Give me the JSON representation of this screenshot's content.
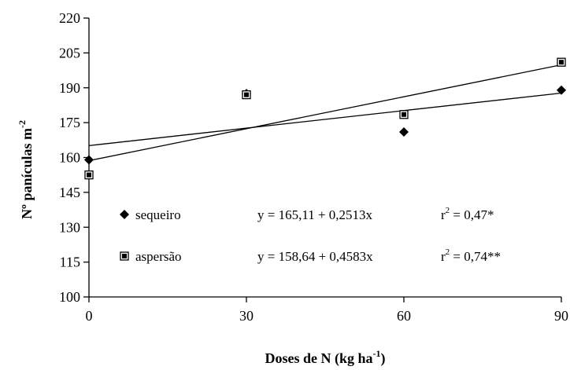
{
  "chart_data": {
    "type": "scatter",
    "title": "",
    "xlabel": "Doses de N (kg ha",
    "xlabel_sup": "-1",
    "xlabel_tail": ")",
    "ylabel": "Nº panículas m",
    "ylabel_sup": "-2",
    "xlim": [
      0,
      90
    ],
    "ylim": [
      100,
      220
    ],
    "xticks": [
      0,
      30,
      60,
      90
    ],
    "yticks": [
      100,
      115,
      130,
      145,
      160,
      175,
      190,
      205,
      220
    ],
    "grid": false,
    "series": [
      {
        "name": "sequeiro",
        "marker": "diamond",
        "color": "#000000",
        "x": [
          0,
          30,
          60,
          90
        ],
        "y": [
          159,
          187.5,
          171,
          189
        ],
        "trend": {
          "intercept": 165.11,
          "slope": 0.2513
        },
        "equation": "y =  165,11 + 0,2513x",
        "r2_prefix": "r",
        "r2_sup": "2",
        "r2_value": " = 0,47*"
      },
      {
        "name": "aspersão",
        "marker": "square",
        "color": "#000000",
        "x": [
          0,
          30,
          60,
          90
        ],
        "y": [
          152.5,
          187,
          178.5,
          201
        ],
        "trend": {
          "intercept": 158.64,
          "slope": 0.4583
        },
        "equation": "y =  158,64 + 0,4583x",
        "r2_prefix": "r",
        "r2_sup": "2",
        "r2_value": " = 0,74**"
      }
    ],
    "legend_position": "inside-bottom-left"
  }
}
